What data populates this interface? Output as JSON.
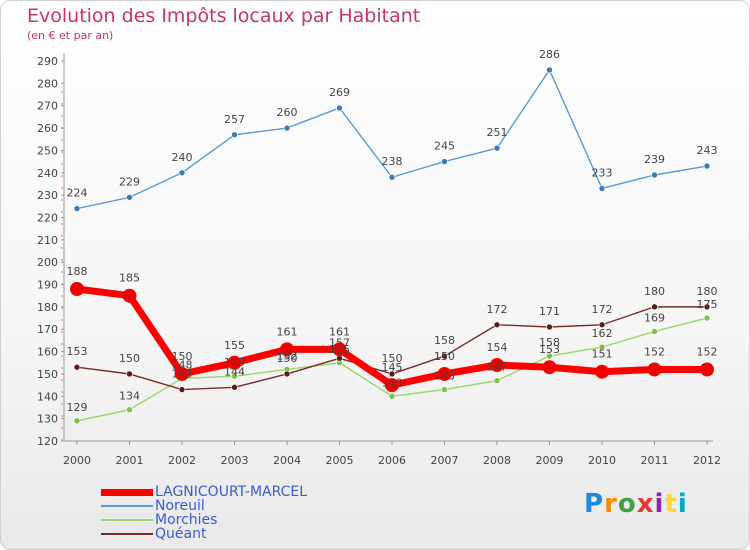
{
  "header": {
    "title": "Evolution des Impôts locaux par Habitant",
    "subtitle": "(en € et par an)"
  },
  "logo": {
    "text": "Proxiti",
    "colors": [
      "#1e88e5",
      "#fb8c00",
      "#43a047",
      "#e53935",
      "#8e24aa",
      "#fdd835",
      "#00acc1"
    ]
  },
  "chart_data": {
    "type": "line",
    "x": [
      "2000",
      "2001",
      "2002",
      "2003",
      "2004",
      "2005",
      "2006",
      "2007",
      "2008",
      "2009",
      "2010",
      "2011",
      "2012"
    ],
    "ylim": [
      120,
      290
    ],
    "yticks": [
      120,
      130,
      140,
      150,
      160,
      170,
      180,
      190,
      200,
      210,
      220,
      230,
      240,
      250,
      260,
      270,
      280,
      290
    ],
    "title": "Evolution des Impôts locaux par Habitant",
    "ylabel": "(en € et par an)",
    "grid": false,
    "legend": "bottom-left",
    "series": [
      {
        "name": "Noreuil",
        "color": "#5b9bd5",
        "marker": "#3a7bc0",
        "values": [
          224,
          229,
          240,
          257,
          260,
          269,
          238,
          245,
          251,
          286,
          233,
          239,
          243
        ]
      },
      {
        "name": "Morchies",
        "color": "#9bd66b",
        "marker": "#7cc04a",
        "values": [
          129,
          134,
          148,
          149,
          152,
          155,
          140,
          143,
          147,
          158,
          162,
          169,
          175
        ]
      },
      {
        "name": "Quéant",
        "color": "#7a2a2a",
        "marker": "#5a1a1a",
        "values": [
          153,
          150,
          143,
          144,
          150,
          157,
          150,
          158,
          172,
          171,
          172,
          180,
          180
        ]
      },
      {
        "name": "LAGNICOURT-MARCEL",
        "color": "#ff0000",
        "marker": "#ee0000",
        "values": [
          188,
          185,
          150,
          155,
          161,
          161,
          145,
          150,
          154,
          153,
          151,
          152,
          152
        ]
      }
    ],
    "data_labels": {
      "Noreuil": [
        "224",
        "229",
        "240",
        "257",
        "260",
        "269",
        "238",
        "245",
        "251",
        "286",
        "233",
        "239",
        "243"
      ],
      "LAGNICOURT-MARCEL": [
        "188",
        "185",
        "150",
        "155",
        "161",
        "161",
        "145",
        "150",
        "154",
        "153",
        "151",
        "152",
        "152"
      ],
      "Quéant": [
        "153",
        "150",
        "143",
        "144",
        "150",
        "157",
        "150",
        "158",
        "172",
        "171",
        "172",
        "180",
        "180"
      ],
      "Morchies": [
        "129",
        "134",
        "148",
        "149",
        "152",
        "155",
        "140",
        "143",
        "147",
        "158",
        "162",
        "169",
        "175"
      ]
    }
  },
  "legend": {
    "items": [
      {
        "name": "LAGNICOURT-MARCEL",
        "color": "#ff0000",
        "text_color": "#3b5bd6"
      },
      {
        "name": "Noreuil",
        "color": "#5b9bd5",
        "text_color": "#3b5bd6"
      },
      {
        "name": "Morchies",
        "color": "#9bd66b",
        "text_color": "#3b5bd6"
      },
      {
        "name": "Quéant",
        "color": "#7a2a2a",
        "text_color": "#3b5bd6"
      }
    ]
  }
}
